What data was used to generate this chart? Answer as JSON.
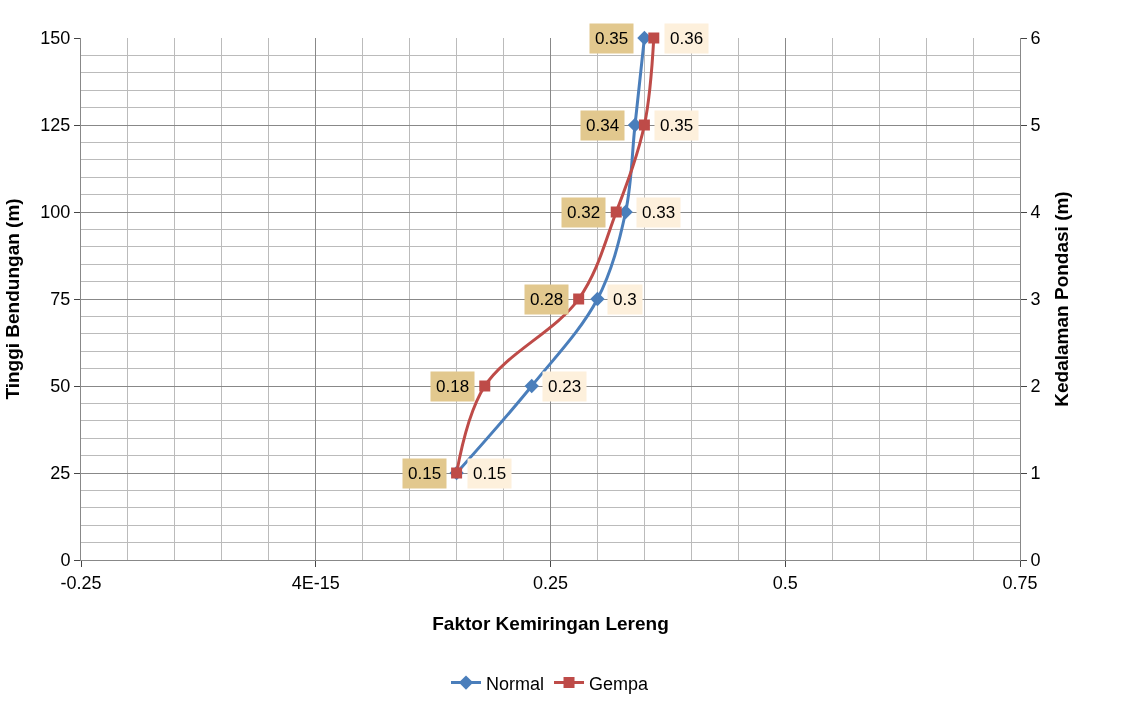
{
  "chart_data": {
    "type": "line",
    "orientation": "horizontal",
    "xlabel": "Faktor Kemiringan Lereng",
    "ylabel": "Tinggi Bendungan (m)",
    "y2label": "Kedalaman Pondasi (m)",
    "series": [
      {
        "name": "Normal",
        "color": "#4a7ebb",
        "marker": "diamond",
        "x": [
          25,
          50,
          75,
          100,
          125,
          150
        ],
        "values": [
          0.15,
          0.23,
          0.3,
          0.33,
          0.34,
          0.35
        ]
      },
      {
        "name": "Gempa",
        "color": "#be4b48",
        "marker": "square",
        "x": [
          25,
          50,
          75,
          100,
          125,
          150
        ],
        "values": [
          0.15,
          0.18,
          0.28,
          0.32,
          0.35,
          0.36
        ]
      }
    ],
    "xlim": [
      -0.25,
      0.75
    ],
    "xticks": [
      -0.25,
      {
        "value": 0,
        "label": "4E-15"
      },
      0.25,
      0.5,
      0.75
    ],
    "ylim": [
      0,
      150
    ],
    "yticks": [
      0,
      25,
      50,
      75,
      100,
      125,
      150
    ],
    "y2lim": [
      0,
      6
    ],
    "y2ticks": [
      0,
      1,
      2,
      3,
      4,
      5,
      6
    ],
    "data_labels": true,
    "grid": true,
    "legend": "bottom"
  }
}
